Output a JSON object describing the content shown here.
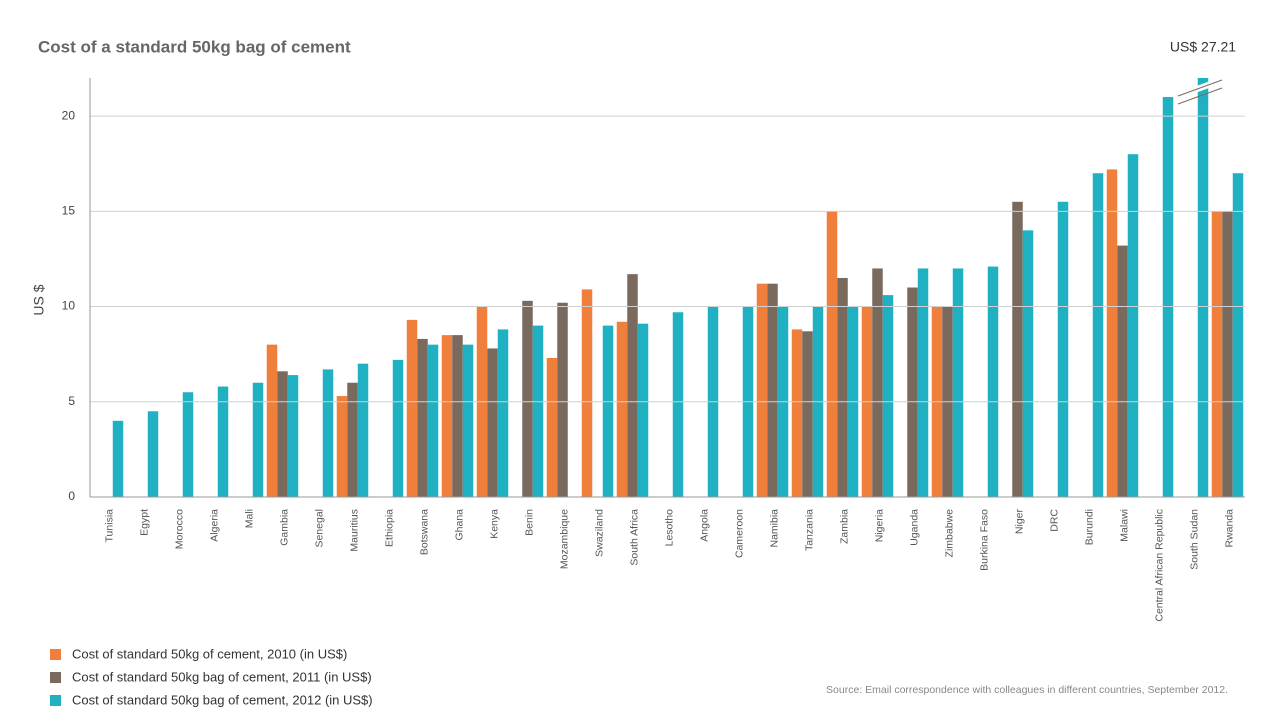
{
  "chart_data": {
    "type": "bar",
    "title": "Cost of a standard 50kg bag of cement",
    "y_label": "US $",
    "source": "Source: Email correspondence with colleagues in different countries, September 2012.",
    "categories": [
      "Tunisia",
      "Egypt",
      "Morocco",
      "Algeria",
      "Mali",
      "Gambia",
      "Senegal",
      "Mauritius",
      "Ethiopia",
      "Botswana",
      "Ghana",
      "Kenya",
      "Benin",
      "Mozambique",
      "Swaziland",
      "South Africa",
      "Lesotho",
      "Angola",
      "Cameroon",
      "Namibia",
      "Tanzania",
      "Zambia",
      "Nigeria",
      "Uganda",
      "Zimbabwe",
      "Burkina Faso",
      "Niger",
      "DRC",
      "Burundi",
      "Malawi",
      "Central African Republic",
      "South Sudan",
      "Rwanda"
    ],
    "series": [
      {
        "name": "Cost of standard 50kg of cement, 2010 (in US$)",
        "color": "#f07f3c",
        "values": [
          null,
          null,
          null,
          null,
          null,
          8.0,
          null,
          5.3,
          null,
          9.3,
          8.5,
          10.0,
          null,
          7.3,
          10.9,
          9.2,
          null,
          null,
          null,
          11.2,
          8.8,
          15.0,
          10.0,
          null,
          10.0,
          null,
          null,
          null,
          null,
          17.2,
          null,
          null,
          15.0
        ]
      },
      {
        "name": "Cost of standard 50kg bag of cement, 2011 (in US$)",
        "color": "#7a6a5e",
        "values": [
          null,
          null,
          null,
          null,
          null,
          6.6,
          null,
          6.0,
          null,
          8.3,
          8.5,
          7.8,
          10.3,
          10.2,
          null,
          11.7,
          null,
          null,
          null,
          11.2,
          8.7,
          11.5,
          12.0,
          11.0,
          10.0,
          null,
          15.5,
          null,
          null,
          13.2,
          null,
          null,
          15.0
        ]
      },
      {
        "name": "Cost of standard 50kg bag of cement, 2012 (in US$)",
        "color": "#1fb1c1",
        "values": [
          4.0,
          4.5,
          5.5,
          5.8,
          6.0,
          6.4,
          6.7,
          7.0,
          7.2,
          8.0,
          8.0,
          8.8,
          9.0,
          null,
          9.0,
          9.1,
          9.7,
          10.0,
          10.0,
          10.0,
          10.0,
          10.0,
          10.6,
          12.0,
          12.0,
          12.1,
          14.0,
          15.5,
          17.0,
          18.0,
          21.0,
          27.21,
          17.0
        ],
        "value_labels": [
          null,
          null,
          null,
          null,
          null,
          null,
          null,
          null,
          null,
          null,
          null,
          null,
          null,
          null,
          null,
          null,
          null,
          null,
          null,
          null,
          null,
          null,
          null,
          null,
          null,
          null,
          null,
          null,
          null,
          null,
          null,
          "US$ 27.21",
          null
        ]
      }
    ],
    "ylim": [
      0,
      22
    ],
    "yticks": [
      0,
      5,
      10,
      15,
      20
    ],
    "grid": true
  }
}
